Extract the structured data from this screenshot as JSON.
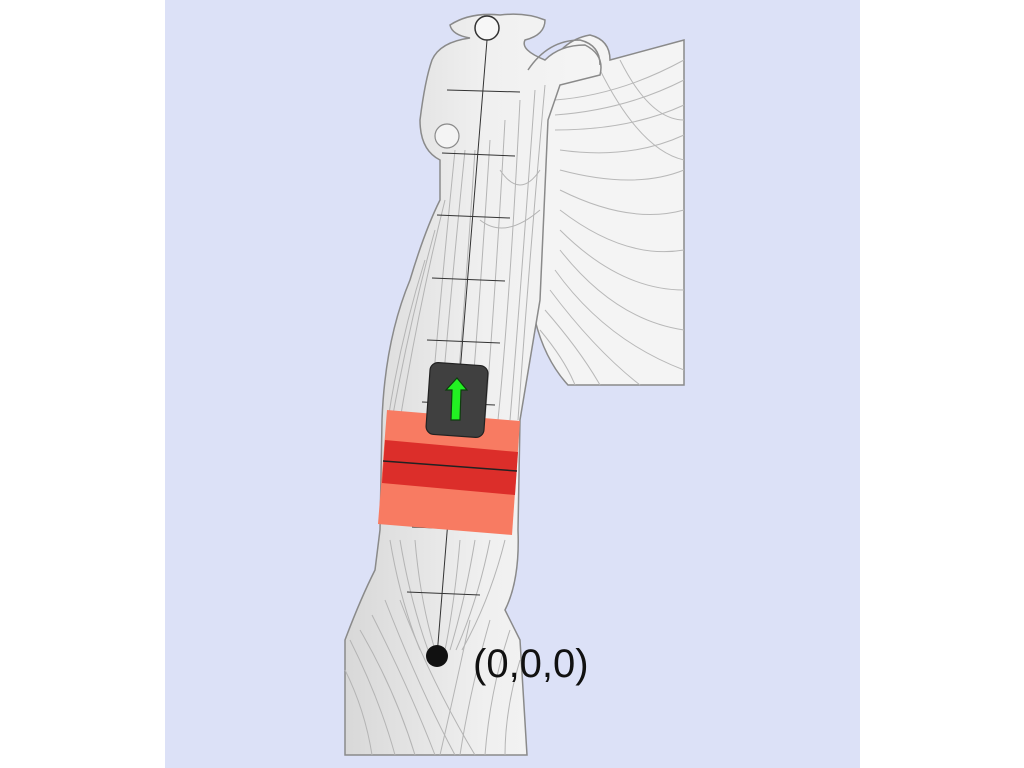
{
  "figure": {
    "origin_label": "(0,0,0)"
  },
  "colors": {
    "background_panel": "#dce1f7",
    "skin": "#f3f3f3",
    "muscle_line": "#b4b4b4",
    "outline": "#8a8a8a",
    "band_outer": "#f87b62",
    "band_inner": "#dc2e2a",
    "sensor_body": "#404040",
    "sensor_arrow": "#22f022",
    "origin_dot": "#111111"
  }
}
